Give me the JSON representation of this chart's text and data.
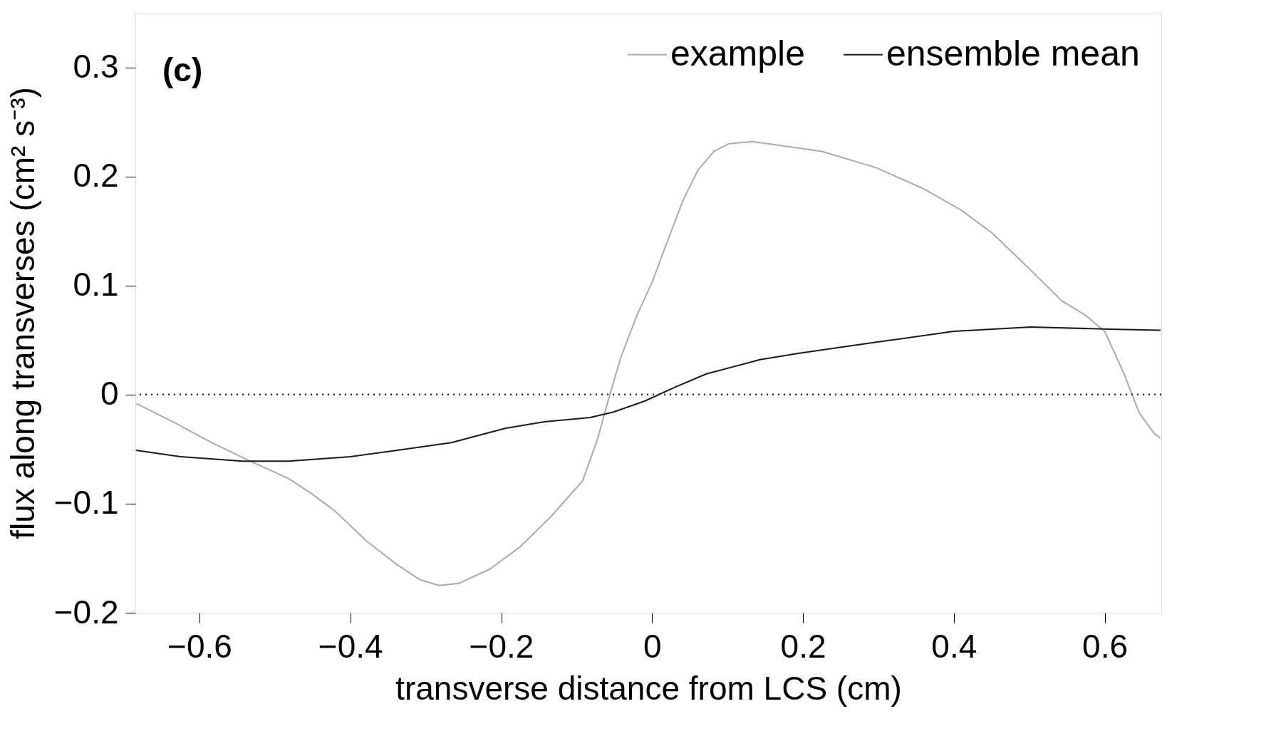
{
  "chart_data": {
    "type": "line",
    "xlabel": "transverse distance from LCS (cm)",
    "ylabel": "flux along transverses (cm² s⁻³)",
    "annotations": [
      "(c)"
    ],
    "xlim": [
      -0.685,
      0.675
    ],
    "ylim": [
      -0.2,
      0.35
    ],
    "xticks": [
      {
        "value": -0.6,
        "label": "−0.6"
      },
      {
        "value": -0.4,
        "label": "−0.4"
      },
      {
        "value": -0.2,
        "label": "−0.2"
      },
      0,
      0.2,
      0.4,
      0.6
    ],
    "yticks": [
      {
        "value": -0.2,
        "label": "−0.2"
      },
      {
        "value": -0.1,
        "label": "−0.1"
      },
      0,
      0.1,
      0.2,
      0.3
    ],
    "grid": false,
    "legend": "top right",
    "line_style": "solid",
    "marker": "none",
    "ref_lines": [
      {
        "axis": "y",
        "value": 0,
        "line_style": "dotted",
        "color": "#333333"
      }
    ],
    "series": [
      {
        "name": "example",
        "color": "#aaaaaa",
        "x": [
          -0.684,
          -0.635,
          -0.584,
          -0.533,
          -0.482,
          -0.451,
          -0.42,
          -0.379,
          -0.338,
          -0.307,
          -0.282,
          -0.256,
          -0.215,
          -0.174,
          -0.133,
          -0.092,
          -0.072,
          -0.056,
          -0.041,
          -0.02,
          0,
          0.02,
          0.041,
          0.061,
          0.082,
          0.102,
          0.133,
          0.174,
          0.225,
          0.297,
          0.359,
          0.41,
          0.451,
          0.502,
          0.543,
          0.574,
          0.6,
          0.625,
          0.646,
          0.666,
          0.674
        ],
        "values": [
          -0.008,
          -0.025,
          -0.044,
          -0.061,
          -0.077,
          -0.091,
          -0.107,
          -0.134,
          -0.156,
          -0.17,
          -0.175,
          -0.173,
          -0.16,
          -0.139,
          -0.111,
          -0.079,
          -0.04,
          0,
          0.035,
          0.073,
          0.103,
          0.14,
          0.178,
          0.206,
          0.223,
          0.23,
          0.232,
          0.228,
          0.223,
          0.208,
          0.189,
          0.169,
          0.148,
          0.114,
          0.086,
          0.073,
          0.058,
          0.02,
          -0.017,
          -0.036,
          -0.04
        ]
      },
      {
        "name": "ensemble mean",
        "color": "#1a1a1a",
        "x": [
          -0.684,
          -0.625,
          -0.543,
          -0.482,
          -0.4,
          -0.338,
          -0.266,
          -0.195,
          -0.143,
          -0.082,
          -0.051,
          -0.01,
          0.031,
          0.072,
          0.143,
          0.195,
          0.297,
          0.4,
          0.502,
          0.605,
          0.674
        ],
        "values": [
          -0.051,
          -0.057,
          -0.061,
          -0.061,
          -0.057,
          -0.051,
          -0.044,
          -0.031,
          -0.025,
          -0.021,
          -0.016,
          -0.006,
          0.007,
          0.019,
          0.032,
          0.038,
          0.048,
          0.058,
          0.062,
          0.06,
          0.059
        ]
      }
    ]
  }
}
